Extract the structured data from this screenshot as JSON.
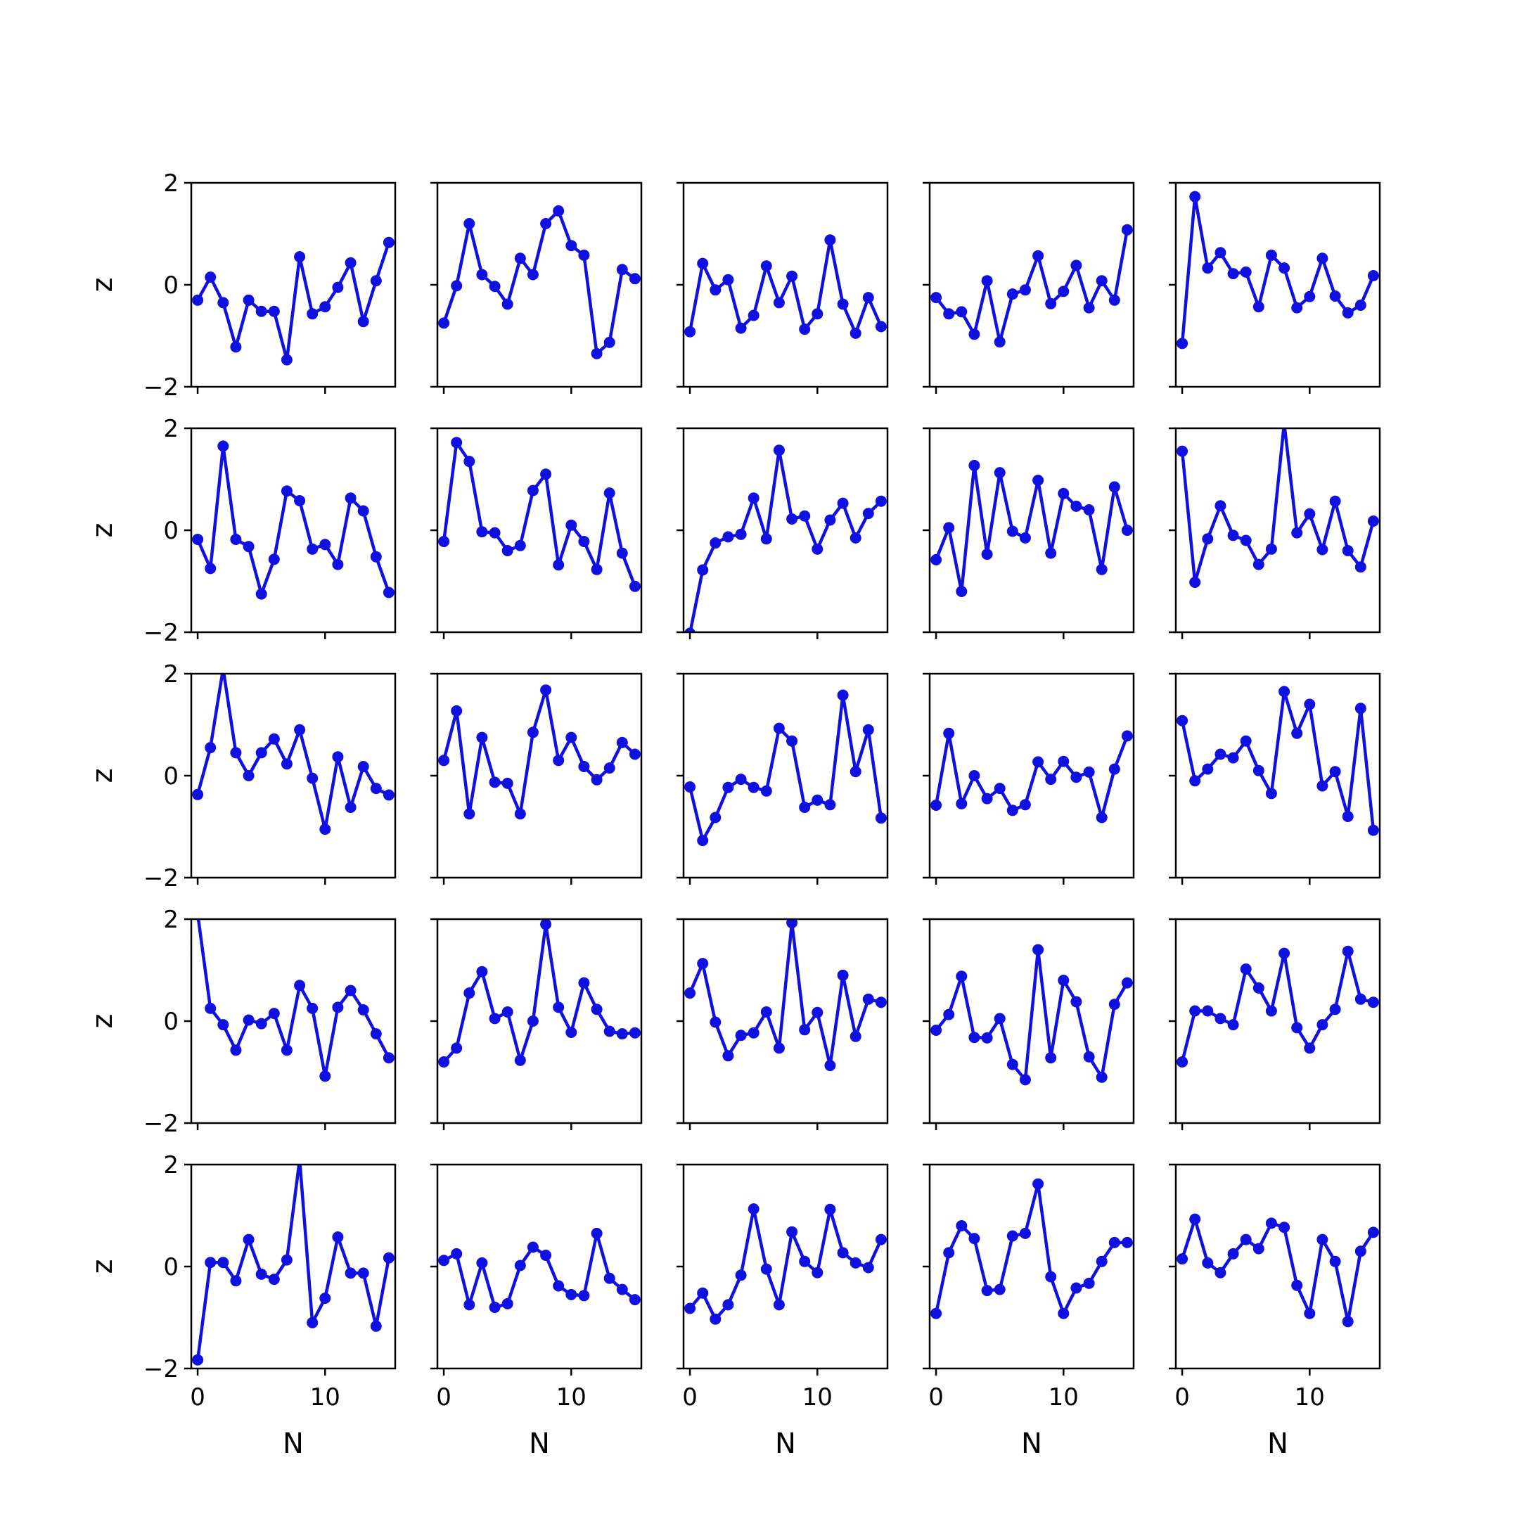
{
  "figure": {
    "line_color": "#1010e0",
    "x_label": "N",
    "y_label": "z"
  },
  "chart_data": {
    "type": "line",
    "rows": 5,
    "cols": 5,
    "xlim": [
      -0.5,
      15.5
    ],
    "ylim": [
      -2,
      2
    ],
    "x_ticks": [
      0,
      10
    ],
    "x_tick_labels": [
      "0",
      "10"
    ],
    "y_ticks": [
      -2,
      0,
      2
    ],
    "y_tick_labels": [
      "−2",
      "0",
      "2"
    ],
    "x": [
      0,
      1,
      2,
      3,
      4,
      5,
      6,
      7,
      8,
      9,
      10,
      11,
      12,
      13,
      14,
      15
    ],
    "series": [
      {
        "values": [
          -0.3,
          0.15,
          -0.35,
          -1.22,
          -0.3,
          -0.52,
          -0.52,
          -1.47,
          0.55,
          -0.57,
          -0.43,
          -0.05,
          0.43,
          -0.72,
          0.08,
          0.83
        ]
      },
      {
        "values": [
          -0.75,
          -0.02,
          1.2,
          0.2,
          -0.03,
          -0.38,
          0.52,
          0.2,
          1.2,
          1.45,
          0.77,
          0.58,
          -1.35,
          -1.13,
          0.3,
          0.12
        ]
      },
      {
        "values": [
          -0.92,
          0.42,
          -0.1,
          0.1,
          -0.85,
          -0.6,
          0.37,
          -0.35,
          0.17,
          -0.87,
          -0.57,
          0.88,
          -0.38,
          -0.95,
          -0.25,
          -0.82
        ]
      },
      {
        "values": [
          -0.25,
          -0.57,
          -0.53,
          -0.97,
          0.08,
          -1.12,
          -0.18,
          -0.1,
          0.57,
          -0.37,
          -0.13,
          0.38,
          -0.45,
          0.08,
          -0.3,
          1.08
        ]
      },
      {
        "values": [
          -1.15,
          1.73,
          0.33,
          0.63,
          0.22,
          0.25,
          -0.43,
          0.58,
          0.33,
          -0.45,
          -0.23,
          0.52,
          -0.22,
          -0.55,
          -0.4,
          0.18
        ]
      },
      {
        "values": [
          -0.18,
          -0.75,
          1.65,
          -0.18,
          -0.32,
          -1.25,
          -0.57,
          0.77,
          0.58,
          -0.37,
          -0.28,
          -0.67,
          0.63,
          0.38,
          -0.52,
          -1.22
        ]
      },
      {
        "values": [
          -0.22,
          1.72,
          1.35,
          -0.03,
          -0.05,
          -0.4,
          -0.3,
          0.78,
          1.1,
          -0.68,
          0.1,
          -0.22,
          -0.77,
          0.73,
          -0.45,
          -1.1
        ]
      },
      {
        "values": [
          -2.02,
          -0.78,
          -0.25,
          -0.13,
          -0.08,
          0.63,
          -0.17,
          1.57,
          0.22,
          0.28,
          -0.37,
          0.2,
          0.53,
          -0.15,
          0.33,
          0.57
        ]
      },
      {
        "values": [
          -0.58,
          0.05,
          -1.2,
          1.27,
          -0.47,
          1.13,
          -0.02,
          -0.15,
          0.98,
          -0.45,
          0.72,
          0.47,
          0.4,
          -0.77,
          0.85,
          0.0
        ]
      },
      {
        "values": [
          1.55,
          -1.02,
          -0.17,
          0.48,
          -0.1,
          -0.2,
          -0.67,
          -0.37,
          2.1,
          -0.05,
          0.32,
          -0.38,
          0.57,
          -0.4,
          -0.72,
          0.18
        ]
      },
      {
        "values": [
          -0.37,
          0.55,
          2.1,
          0.45,
          0.0,
          0.45,
          0.72,
          0.23,
          0.9,
          -0.05,
          -1.05,
          0.37,
          -0.62,
          0.18,
          -0.25,
          -0.38
        ]
      },
      {
        "values": [
          0.3,
          1.27,
          -0.75,
          0.75,
          -0.13,
          -0.15,
          -0.75,
          0.85,
          1.68,
          0.3,
          0.75,
          0.18,
          -0.08,
          0.15,
          0.65,
          0.42
        ]
      },
      {
        "values": [
          -0.22,
          -1.27,
          -0.82,
          -0.23,
          -0.07,
          -0.23,
          -0.3,
          0.93,
          0.68,
          -0.62,
          -0.48,
          -0.57,
          1.58,
          0.08,
          0.9,
          -0.83
        ]
      },
      {
        "values": [
          -0.58,
          0.83,
          -0.55,
          0.0,
          -0.45,
          -0.25,
          -0.68,
          -0.57,
          0.27,
          -0.07,
          0.28,
          -0.03,
          0.07,
          -0.82,
          0.13,
          0.78
        ]
      },
      {
        "values": [
          1.08,
          -0.1,
          0.13,
          0.42,
          0.35,
          0.68,
          0.1,
          -0.35,
          1.65,
          0.83,
          1.4,
          -0.2,
          0.08,
          -0.8,
          1.32,
          -1.07
        ]
      },
      {
        "values": [
          2.1,
          0.25,
          -0.07,
          -0.57,
          0.02,
          -0.05,
          0.15,
          -0.57,
          0.7,
          0.25,
          -1.08,
          0.27,
          0.6,
          0.22,
          -0.25,
          -0.72
        ]
      },
      {
        "values": [
          -0.8,
          -0.53,
          0.55,
          0.97,
          0.05,
          0.18,
          -0.77,
          0.0,
          1.9,
          0.27,
          -0.22,
          0.75,
          0.23,
          -0.2,
          -0.25,
          -0.23
        ]
      },
      {
        "values": [
          0.55,
          1.13,
          -0.02,
          -0.68,
          -0.28,
          -0.23,
          0.18,
          -0.53,
          1.93,
          -0.17,
          0.17,
          -0.87,
          0.9,
          -0.3,
          0.43,
          0.37
        ]
      },
      {
        "values": [
          -0.18,
          0.13,
          0.88,
          -0.32,
          -0.33,
          0.05,
          -0.85,
          -1.15,
          1.4,
          -0.72,
          0.8,
          0.38,
          -0.7,
          -1.1,
          0.33,
          0.75
        ]
      },
      {
        "values": [
          -0.8,
          0.2,
          0.2,
          0.05,
          -0.07,
          1.02,
          0.65,
          0.2,
          1.33,
          -0.13,
          -0.53,
          -0.07,
          0.23,
          1.37,
          0.43,
          0.37
        ]
      },
      {
        "values": [
          -1.83,
          0.08,
          0.08,
          -0.28,
          0.53,
          -0.15,
          -0.25,
          0.13,
          2.1,
          -1.1,
          -0.62,
          0.58,
          -0.13,
          -0.13,
          -1.17,
          0.17
        ]
      },
      {
        "values": [
          0.12,
          0.25,
          -0.75,
          0.07,
          -0.8,
          -0.73,
          0.02,
          0.38,
          0.22,
          -0.38,
          -0.55,
          -0.57,
          0.65,
          -0.23,
          -0.45,
          -0.65
        ]
      },
      {
        "values": [
          -0.82,
          -0.52,
          -1.03,
          -0.75,
          -0.17,
          1.13,
          -0.05,
          -0.75,
          0.68,
          0.1,
          -0.12,
          1.12,
          0.27,
          0.07,
          -0.02,
          0.53
        ]
      },
      {
        "values": [
          -0.92,
          0.27,
          0.8,
          0.55,
          -0.47,
          -0.45,
          0.6,
          0.65,
          1.62,
          -0.2,
          -0.92,
          -0.42,
          -0.33,
          0.1,
          0.47,
          0.47
        ]
      },
      {
        "values": [
          0.15,
          0.93,
          0.07,
          -0.12,
          0.25,
          0.53,
          0.35,
          0.85,
          0.77,
          -0.37,
          -0.92,
          0.53,
          0.1,
          -1.08,
          0.3,
          0.67
        ]
      }
    ]
  }
}
